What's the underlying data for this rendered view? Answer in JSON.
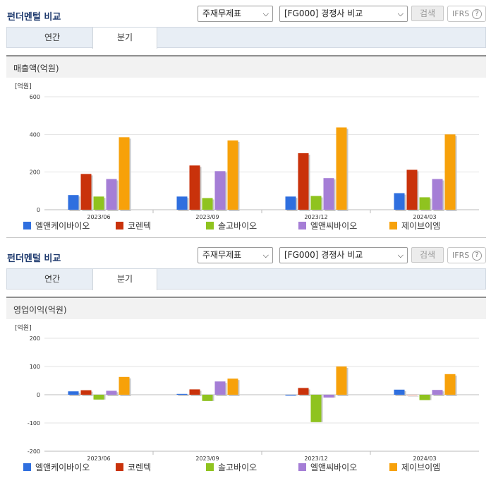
{
  "panels": [
    {
      "title": "펀더멘털 비교",
      "select1": "주재무제표",
      "select2": "[FG000] 경쟁사 비교",
      "search_label": "검색",
      "ifrs_label": "IFRS",
      "help_glyph": "?",
      "tabs": [
        "연간",
        "분기"
      ],
      "active_tab": "분기",
      "subtitle": "매출액(억원)"
    },
    {
      "title": "펀더멘털 비교",
      "select1": "주재무제표",
      "select2": "[FG000] 경쟁사 비교",
      "search_label": "검색",
      "ifrs_label": "IFRS",
      "help_glyph": "?",
      "tabs": [
        "연간",
        "분기"
      ],
      "active_tab": "분기",
      "subtitle": "영업이익(억원)"
    }
  ],
  "chart_data": [
    {
      "type": "bar",
      "title": "매출액(억원)",
      "unit_label": "[억원]",
      "categories": [
        "2023/06",
        "2023/09",
        "2023/12",
        "2024/03"
      ],
      "ylim": [
        0,
        600
      ],
      "yticks": [
        0,
        200,
        400,
        600
      ],
      "grid": true,
      "legend_position": "bottom",
      "series": [
        {
          "name": "엘앤케이바이오",
          "color": "#2f6fdf",
          "values": [
            78,
            70,
            70,
            88
          ]
        },
        {
          "name": "코렌텍",
          "color": "#c9320b",
          "values": [
            190,
            235,
            300,
            212
          ]
        },
        {
          "name": "솔고바이오",
          "color": "#8fc31f",
          "values": [
            70,
            62,
            73,
            66
          ]
        },
        {
          "name": "엘앤씨바이오",
          "color": "#a57ed6",
          "values": [
            163,
            205,
            168,
            163
          ]
        },
        {
          "name": "제이브이엠",
          "color": "#f7a10a",
          "values": [
            385,
            368,
            437,
            400
          ]
        }
      ]
    },
    {
      "type": "bar",
      "title": "영업이익(억원)",
      "unit_label": "[억원]",
      "categories": [
        "2023/06",
        "2023/09",
        "2023/12",
        "2024/03"
      ],
      "ylim": [
        -200,
        200
      ],
      "yticks": [
        -200,
        -100,
        0,
        100,
        200
      ],
      "grid": true,
      "legend_position": "bottom",
      "series": [
        {
          "name": "엘앤케이바이오",
          "color": "#2f6fdf",
          "values": [
            12,
            3,
            -3,
            18
          ]
        },
        {
          "name": "코렌텍",
          "color": "#c9320b",
          "values": [
            16,
            19,
            24,
            0
          ]
        },
        {
          "name": "솔고바이오",
          "color": "#8fc31f",
          "values": [
            -17,
            -22,
            -97,
            -19
          ]
        },
        {
          "name": "엘앤씨바이오",
          "color": "#a57ed6",
          "values": [
            14,
            47,
            -10,
            17
          ]
        },
        {
          "name": "제이브이엠",
          "color": "#f7a10a",
          "values": [
            63,
            57,
            100,
            73
          ]
        }
      ]
    }
  ]
}
